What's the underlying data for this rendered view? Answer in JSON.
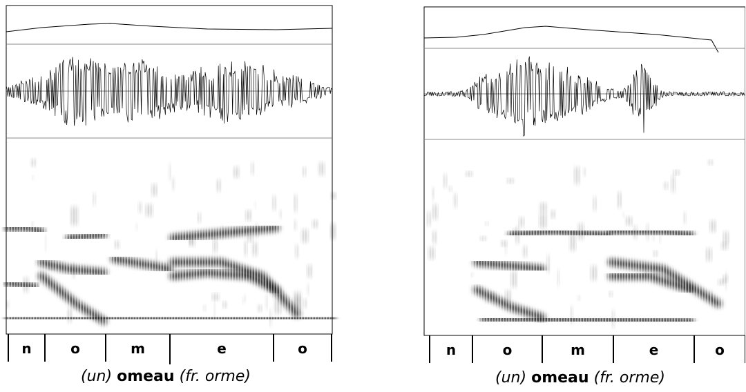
{
  "panels": [
    {
      "segments": [
        "n",
        "o",
        "m",
        "e",
        "o"
      ],
      "caption": {
        "prefix": "(un)",
        "word": "omeau",
        "suffix": "(fr. orme)"
      }
    },
    {
      "segments": [
        "n",
        "o",
        "m",
        "e",
        "o"
      ],
      "caption": {
        "prefix": "(un)",
        "word": "omeau",
        "suffix": "(fr. orme)"
      }
    }
  ]
}
